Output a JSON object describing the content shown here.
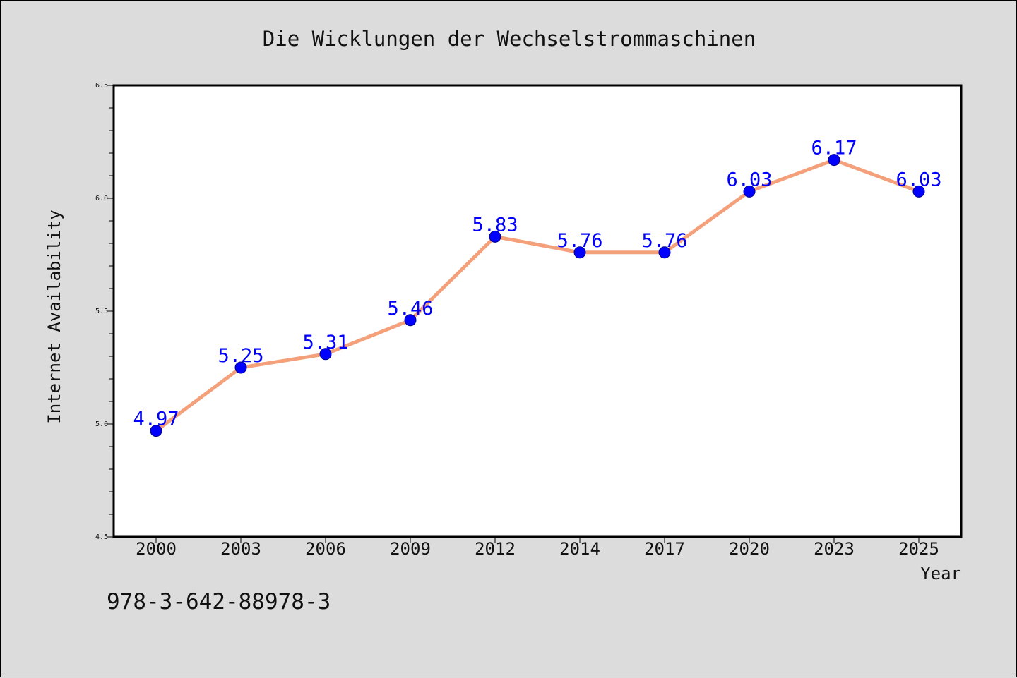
{
  "chart_data": {
    "type": "line",
    "title": "Die Wicklungen der Wechselstrommaschinen",
    "xlabel": "Year",
    "ylabel": "Internet Availability",
    "categories": [
      "2000",
      "2003",
      "2006",
      "2009",
      "2012",
      "2014",
      "2017",
      "2020",
      "2023",
      "2025"
    ],
    "series": [
      {
        "values": [
          4.97,
          5.25,
          5.31,
          5.46,
          5.83,
          5.76,
          5.76,
          6.03,
          6.17,
          6.03
        ]
      }
    ],
    "data_labels": [
      "4.97",
      "5.25",
      "5.31",
      "5.46",
      "5.83",
      "5.76",
      "5.76",
      "6.03",
      "6.17",
      "6.03"
    ],
    "ylim": [
      4.5,
      6.5
    ],
    "yticks": [
      "4.5",
      "5.0",
      "5.5",
      "6.0",
      "6.5"
    ],
    "grid": false,
    "line_color": "#f4a07a",
    "marker_color": "#0000ff",
    "label_color": "#0000ff",
    "plot_background": "#ffffff",
    "figure_background": "#dcdcdc"
  },
  "footer": {
    "code": "978-3-642-88978-3"
  }
}
